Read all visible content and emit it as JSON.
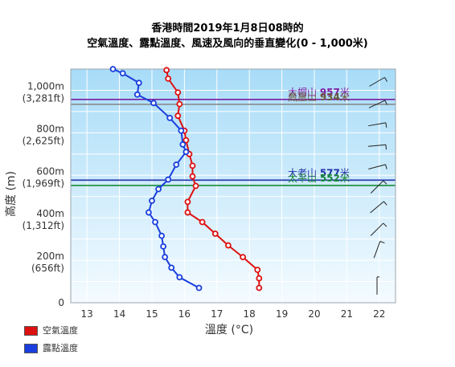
{
  "title_line1": "香港時間2019年1月8日08時的",
  "title_line2": "空氣溫度、露點溫度、風速及風向的垂直變化(0 - 1,000米)",
  "chart_data": {
    "type": "line",
    "xlabel": "溫度 (°C)",
    "ylabel": "高度 (m)",
    "xlim": [
      12.5,
      22.5
    ],
    "ylim": [
      0,
      1100
    ],
    "x_ticks": [
      "13",
      "14",
      "15",
      "16",
      "17",
      "18",
      "19",
      "20",
      "21",
      "22"
    ],
    "x_tick_values": [
      13,
      14,
      15,
      16,
      17,
      18,
      19,
      20,
      21,
      22
    ],
    "y_ticks": [
      {
        "value": 0,
        "label": "0",
        "sub": ""
      },
      {
        "value": 200,
        "label": "200m",
        "sub": "(656ft)"
      },
      {
        "value": 400,
        "label": "400m",
        "sub": "(1,312ft)"
      },
      {
        "value": 600,
        "label": "600m",
        "sub": "(1,969ft)"
      },
      {
        "value": 800,
        "label": "800m",
        "sub": "(2,625ft)"
      },
      {
        "value": 1000,
        "label": "1,000m",
        "sub": "(3,281ft)"
      }
    ],
    "grid": true,
    "series": [
      {
        "name": "空氣溫度",
        "color": "#dd1111",
        "points": [
          [
            18.3,
            70
          ],
          [
            18.3,
            115
          ],
          [
            18.25,
            155
          ],
          [
            17.8,
            215
          ],
          [
            17.35,
            270
          ],
          [
            16.95,
            325
          ],
          [
            16.55,
            380
          ],
          [
            16.1,
            425
          ],
          [
            16.1,
            475
          ],
          [
            16.35,
            550
          ],
          [
            16.25,
            595
          ],
          [
            16.25,
            645
          ],
          [
            16.15,
            700
          ],
          [
            16.05,
            765
          ],
          [
            16.0,
            810
          ],
          [
            15.8,
            880
          ],
          [
            15.85,
            935
          ],
          [
            15.8,
            990
          ],
          [
            15.5,
            1055
          ],
          [
            15.45,
            1095
          ]
        ]
      },
      {
        "name": "露點溫度",
        "color": "#1a3fdd",
        "points": [
          [
            16.45,
            70
          ],
          [
            15.85,
            120
          ],
          [
            15.6,
            165
          ],
          [
            15.4,
            215
          ],
          [
            15.35,
            265
          ],
          [
            15.3,
            315
          ],
          [
            15.1,
            380
          ],
          [
            14.9,
            425
          ],
          [
            15.0,
            480
          ],
          [
            15.2,
            535
          ],
          [
            15.5,
            580
          ],
          [
            15.75,
            650
          ],
          [
            16.05,
            710
          ],
          [
            15.95,
            745
          ],
          [
            15.9,
            810
          ],
          [
            15.55,
            870
          ],
          [
            15.05,
            940
          ],
          [
            14.55,
            980
          ],
          [
            14.6,
            1035
          ],
          [
            14.1,
            1080
          ],
          [
            13.8,
            1100
          ]
        ]
      }
    ],
    "reference_lines": [
      {
        "name": "大帽山",
        "value": 957,
        "value_label": "957",
        "unit": "米",
        "color": "#7a1fa2",
        "label_color": "#7a1fa2"
      },
      {
        "name": "鳳凰山",
        "value": 934,
        "value_label": "934",
        "unit": "米",
        "color": "#8a8a8a",
        "label_color": "#6b5a3a"
      },
      {
        "name": "大老山",
        "value": 577,
        "value_label": "577",
        "unit": "米",
        "color": "#2233aa",
        "label_color": "#2233aa"
      },
      {
        "name": "太平山",
        "value": 552,
        "value_label": "552",
        "unit": "米",
        "color": "#1a8a3a",
        "label_color": "#1a8a3a"
      }
    ],
    "wind_barbs": [
      {
        "height": 1040,
        "direction_deg": 60,
        "speed_kt": 15
      },
      {
        "height": 935,
        "direction_deg": 65,
        "speed_kt": 15
      },
      {
        "height": 840,
        "direction_deg": 80,
        "speed_kt": 15
      },
      {
        "height": 740,
        "direction_deg": 85,
        "speed_kt": 15
      },
      {
        "height": 640,
        "direction_deg": 75,
        "speed_kt": 15
      },
      {
        "height": 545,
        "direction_deg": 45,
        "speed_kt": 15
      },
      {
        "height": 450,
        "direction_deg": 50,
        "speed_kt": 10
      },
      {
        "height": 345,
        "direction_deg": 45,
        "speed_kt": 10
      },
      {
        "height": 250,
        "direction_deg": 20,
        "speed_kt": 10
      },
      {
        "height": 80,
        "direction_deg": 0,
        "speed_kt": 5
      }
    ],
    "legend": {
      "placement": "bottom-left",
      "items": [
        {
          "label": "空氣溫度",
          "color": "#dd1111"
        },
        {
          "label": "露點溫度",
          "color": "#1a3fdd"
        }
      ]
    }
  }
}
